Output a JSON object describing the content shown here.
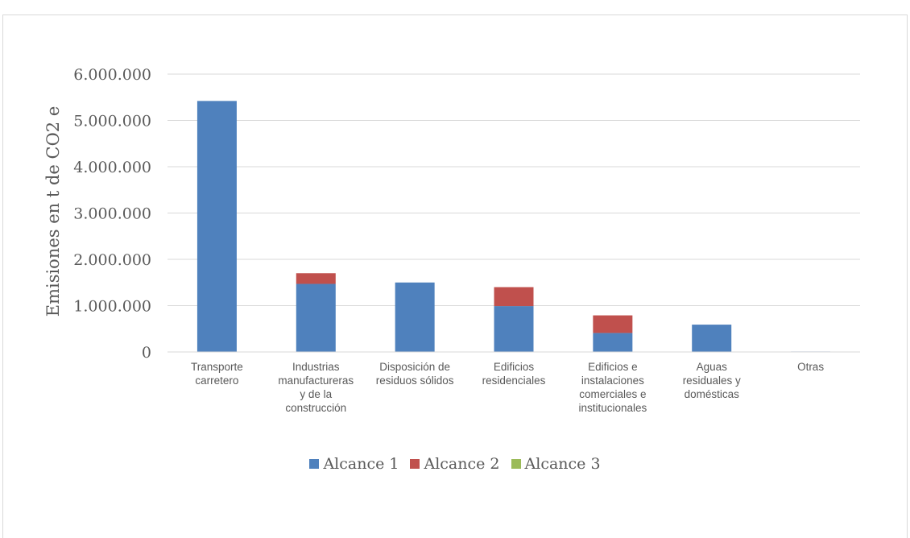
{
  "chart_data": {
    "type": "bar",
    "stacked": true,
    "title": "",
    "ylabel": "Emisiones en t de CO2 e",
    "xlabel": "",
    "ylim": [
      0,
      6000000
    ],
    "yticks": [
      0,
      1000000,
      2000000,
      3000000,
      4000000,
      5000000,
      6000000
    ],
    "ytick_labels": [
      "0",
      "1.000.000",
      "2.000.000",
      "3.000.000",
      "4.000.000",
      "5.000.000",
      "6.000.000"
    ],
    "grid": true,
    "legend_position": "bottom",
    "categories": [
      [
        "Transporte",
        "carretero"
      ],
      [
        "Industrias",
        "manufactureras",
        "y de la",
        "construcción"
      ],
      [
        "Disposición de",
        "residuos sólidos"
      ],
      [
        "Edificios",
        "residenciales"
      ],
      [
        "Edificios e",
        "instalaciones",
        "comerciales e",
        "institucionales"
      ],
      [
        "Aguas",
        "residuales y",
        "domésticas"
      ],
      [
        "Otras"
      ]
    ],
    "series": [
      {
        "name": "Alcance 1",
        "color": "#4f81bd",
        "values": [
          5420000,
          1470000,
          1500000,
          990000,
          410000,
          590000,
          10000
        ]
      },
      {
        "name": "Alcance 2",
        "color": "#c0504d",
        "values": [
          0,
          230000,
          0,
          410000,
          380000,
          0,
          0
        ]
      },
      {
        "name": "Alcance 3",
        "color": "#9bbb59",
        "values": [
          0,
          0,
          0,
          0,
          0,
          0,
          0
        ]
      }
    ]
  }
}
